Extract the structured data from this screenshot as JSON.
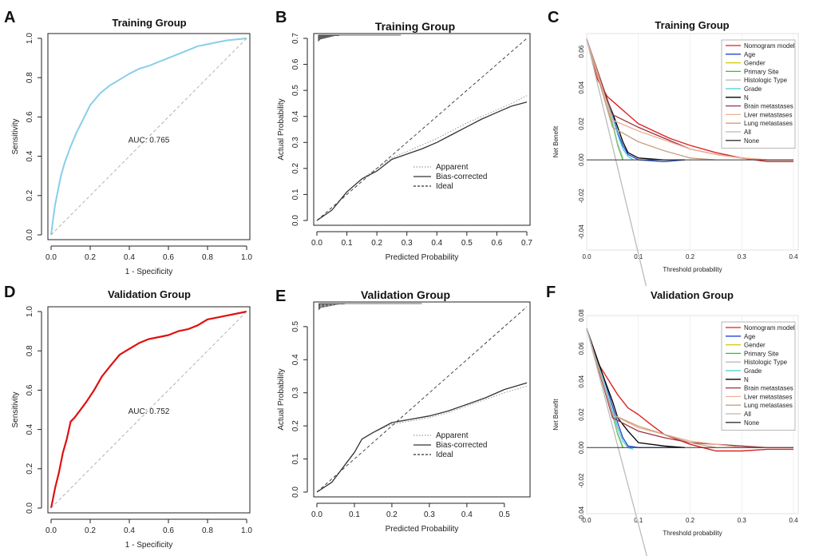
{
  "chart_data": [
    {
      "panel": "A",
      "type": "line",
      "title": "Training Group",
      "xlabel": "1 - Specificity",
      "ylabel": "Sensitivity",
      "xlim": [
        0,
        1
      ],
      "ylim": [
        0,
        1
      ],
      "xticks": [
        "0.0",
        "0.2",
        "0.4",
        "0.6",
        "0.8",
        "1.0"
      ],
      "yticks": [
        "0.0",
        "0.2",
        "0.4",
        "0.6",
        "0.8",
        "1.0"
      ],
      "annotation": "AUC: 0.765",
      "series": [
        {
          "name": "ROC",
          "color": "#87CEEB",
          "x": [
            0,
            0.01,
            0.02,
            0.03,
            0.05,
            0.07,
            0.1,
            0.13,
            0.16,
            0.2,
            0.25,
            0.3,
            0.35,
            0.4,
            0.45,
            0.5,
            0.55,
            0.6,
            0.65,
            0.7,
            0.75,
            0.8,
            0.85,
            0.9,
            0.95,
            1
          ],
          "y": [
            0,
            0.08,
            0.15,
            0.2,
            0.3,
            0.37,
            0.45,
            0.52,
            0.58,
            0.66,
            0.72,
            0.76,
            0.79,
            0.82,
            0.845,
            0.86,
            0.88,
            0.9,
            0.92,
            0.94,
            0.96,
            0.97,
            0.98,
            0.99,
            0.995,
            1
          ]
        },
        {
          "name": "Reference",
          "color": "#aaaaaa",
          "x": [
            0,
            1
          ],
          "y": [
            0,
            1
          ]
        }
      ]
    },
    {
      "panel": "B",
      "type": "line",
      "title": "Training Group",
      "xlabel": "Predicted Probability",
      "ylabel": "Actual Probability",
      "xlim": [
        0,
        0.7
      ],
      "ylim": [
        0,
        0.7
      ],
      "xticks": [
        "0.0",
        "0.1",
        "0.2",
        "0.3",
        "0.4",
        "0.5",
        "0.6",
        "0.7"
      ],
      "yticks": [
        "0.0",
        "0.1",
        "0.2",
        "0.3",
        "0.4",
        "0.5",
        "0.6",
        "0.7"
      ],
      "legend": [
        "Apparent",
        "Bias-corrected",
        "Ideal"
      ],
      "series": [
        {
          "name": "Apparent",
          "color": "#999999",
          "x": [
            0,
            0.05,
            0.1,
            0.15,
            0.2,
            0.25,
            0.3,
            0.35,
            0.4,
            0.45,
            0.5,
            0.55,
            0.6,
            0.65,
            0.7
          ],
          "y": [
            0,
            0.04,
            0.11,
            0.16,
            0.2,
            0.24,
            0.265,
            0.29,
            0.315,
            0.345,
            0.375,
            0.4,
            0.425,
            0.45,
            0.48
          ]
        },
        {
          "name": "Bias-corrected",
          "color": "#333333",
          "x": [
            0,
            0.05,
            0.1,
            0.15,
            0.2,
            0.25,
            0.3,
            0.35,
            0.4,
            0.45,
            0.5,
            0.55,
            0.6,
            0.65,
            0.7
          ],
          "y": [
            0,
            0.04,
            0.11,
            0.16,
            0.19,
            0.235,
            0.255,
            0.275,
            0.3,
            0.33,
            0.36,
            0.39,
            0.415,
            0.44,
            0.455
          ]
        },
        {
          "name": "Ideal",
          "color": "#333333",
          "x": [
            0,
            0.7
          ],
          "y": [
            0,
            0.7
          ]
        }
      ]
    },
    {
      "panel": "C",
      "type": "line",
      "title": "Training Group",
      "xlabel": "Threshold probability",
      "ylabel": "Net Benefit",
      "xlim": [
        0,
        0.4
      ],
      "ylim": [
        -0.05,
        0.07
      ],
      "xticks": [
        "0.0",
        "0.1",
        "0.2",
        "0.3",
        "0.4"
      ],
      "yticks": [
        "-0.04",
        "-0.02",
        "0.00",
        "0.02",
        "0.04",
        "0.06"
      ],
      "legend": [
        "Nomogram model",
        "Age",
        "Gender",
        "Primary Site",
        "Histologic Type",
        "Grade",
        "N",
        "Brain metastases",
        "Liver metastases",
        "Lung metastases",
        "All",
        "None"
      ],
      "series": [
        {
          "name": "Nomogram model",
          "color": "#dd2222",
          "x": [
            0,
            0.02,
            0.04,
            0.06,
            0.08,
            0.1,
            0.13,
            0.16,
            0.2,
            0.25,
            0.3,
            0.35,
            0.4
          ],
          "y": [
            0.067,
            0.045,
            0.035,
            0.03,
            0.025,
            0.02,
            0.016,
            0.012,
            0.008,
            0.004,
            0.001,
            -0.001,
            -0.001
          ]
        },
        {
          "name": "Age",
          "color": "#2244cc",
          "x": [
            0,
            0.03,
            0.05,
            0.06,
            0.07,
            0.08,
            0.1,
            0.15,
            0.19
          ],
          "y": [
            0.067,
            0.04,
            0.025,
            0.015,
            0.008,
            0.003,
            0.0,
            -0.001,
            0.0
          ]
        },
        {
          "name": "Gender",
          "color": "#cccc00",
          "x": [
            0,
            0.03,
            0.05,
            0.06,
            0.07
          ],
          "y": [
            0.067,
            0.038,
            0.02,
            0.008,
            0.0
          ]
        },
        {
          "name": "Primary Site",
          "color": "#22cc22",
          "x": [
            0,
            0.03,
            0.05,
            0.06,
            0.07
          ],
          "y": [
            0.067,
            0.038,
            0.02,
            0.008,
            0.0
          ]
        },
        {
          "name": "Histologic Type",
          "color": "#bbbbbb",
          "x": [
            0,
            0.03,
            0.05,
            0.06,
            0.07
          ],
          "y": [
            0.067,
            0.038,
            0.021,
            0.009,
            0.001
          ]
        },
        {
          "name": "Grade",
          "color": "#44ccdd",
          "x": [
            0,
            0.03,
            0.05,
            0.06,
            0.07,
            0.08,
            0.09
          ],
          "y": [
            0.067,
            0.04,
            0.024,
            0.014,
            0.006,
            0.002,
            0.0
          ]
        },
        {
          "name": "N",
          "color": "#000000",
          "x": [
            0,
            0.03,
            0.05,
            0.06,
            0.07,
            0.08,
            0.1,
            0.15,
            0.19
          ],
          "y": [
            0.067,
            0.04,
            0.026,
            0.018,
            0.01,
            0.004,
            0.001,
            0.0,
            0.0
          ]
        },
        {
          "name": "Brain metastases",
          "color": "#993344",
          "x": [
            0,
            0.05,
            0.1,
            0.15,
            0.2,
            0.25,
            0.3,
            0.35,
            0.4
          ],
          "y": [
            0.067,
            0.025,
            0.018,
            0.012,
            0.006,
            0.003,
            0.001,
            0.0,
            0.0
          ]
        },
        {
          "name": "Liver metastases",
          "color": "#f0b090",
          "x": [
            0,
            0.05,
            0.1,
            0.15,
            0.2,
            0.25,
            0.3,
            0.35,
            0.4
          ],
          "y": [
            0.067,
            0.022,
            0.016,
            0.011,
            0.006,
            0.003,
            0.001,
            0.0,
            0.0
          ]
        },
        {
          "name": "Lung metastases",
          "color": "#c8a080",
          "x": [
            0,
            0.05,
            0.1,
            0.15,
            0.2,
            0.25
          ],
          "y": [
            0.067,
            0.018,
            0.01,
            0.005,
            0.001,
            0.0
          ]
        },
        {
          "name": "All",
          "color": "#bbbbbb",
          "x": [
            0,
            0.115
          ],
          "y": [
            0.067,
            -0.07
          ]
        },
        {
          "name": "None",
          "color": "#333333",
          "x": [
            0,
            0.4
          ],
          "y": [
            0,
            0
          ]
        }
      ]
    },
    {
      "panel": "D",
      "type": "line",
      "title": "Validation Group",
      "xlabel": "1 - Specificity",
      "ylabel": "Sensitivity",
      "xlim": [
        0,
        1
      ],
      "ylim": [
        0,
        1
      ],
      "xticks": [
        "0.0",
        "0.2",
        "0.4",
        "0.6",
        "0.8",
        "1.0"
      ],
      "yticks": [
        "0.0",
        "0.2",
        "0.4",
        "0.6",
        "0.8",
        "1.0"
      ],
      "annotation": "AUC: 0.752",
      "series": [
        {
          "name": "ROC",
          "color": "#e01010",
          "x": [
            0,
            0.01,
            0.02,
            0.04,
            0.06,
            0.08,
            0.1,
            0.12,
            0.15,
            0.18,
            0.22,
            0.26,
            0.3,
            0.35,
            0.4,
            0.45,
            0.5,
            0.55,
            0.6,
            0.65,
            0.7,
            0.75,
            0.8,
            0.85,
            0.9,
            0.95,
            1
          ],
          "y": [
            0,
            0.05,
            0.1,
            0.18,
            0.28,
            0.35,
            0.44,
            0.46,
            0.5,
            0.54,
            0.6,
            0.67,
            0.72,
            0.78,
            0.81,
            0.84,
            0.86,
            0.87,
            0.88,
            0.9,
            0.91,
            0.93,
            0.96,
            0.97,
            0.98,
            0.99,
            1
          ]
        },
        {
          "name": "Reference",
          "color": "#aaaaaa",
          "x": [
            0,
            1
          ],
          "y": [
            0,
            1
          ]
        }
      ]
    },
    {
      "panel": "E",
      "type": "line",
      "title": "Validation Group",
      "xlabel": "Predicted Probability",
      "ylabel": "Actual Probability",
      "xlim": [
        0,
        0.56
      ],
      "ylim": [
        0,
        0.56
      ],
      "xticks": [
        "0.0",
        "0.1",
        "0.2",
        "0.3",
        "0.4",
        "0.5"
      ],
      "yticks": [
        "0.0",
        "0.1",
        "0.2",
        "0.3",
        "0.4",
        "0.5"
      ],
      "legend": [
        "Apparent",
        "Bias-corrected",
        "Ideal"
      ],
      "series": [
        {
          "name": "Apparent",
          "color": "#999999",
          "x": [
            0,
            0.04,
            0.08,
            0.1,
            0.12,
            0.15,
            0.2,
            0.25,
            0.3,
            0.35,
            0.4,
            0.45,
            0.5,
            0.56
          ],
          "y": [
            0,
            0.03,
            0.09,
            0.12,
            0.16,
            0.18,
            0.205,
            0.215,
            0.225,
            0.24,
            0.26,
            0.28,
            0.3,
            0.32
          ]
        },
        {
          "name": "Bias-corrected",
          "color": "#333333",
          "x": [
            0,
            0.04,
            0.08,
            0.1,
            0.12,
            0.15,
            0.2,
            0.25,
            0.3,
            0.35,
            0.4,
            0.45,
            0.5,
            0.56
          ],
          "y": [
            0,
            0.03,
            0.09,
            0.12,
            0.16,
            0.18,
            0.21,
            0.22,
            0.23,
            0.245,
            0.265,
            0.285,
            0.31,
            0.33
          ]
        },
        {
          "name": "Ideal",
          "color": "#333333",
          "x": [
            0,
            0.56
          ],
          "y": [
            0,
            0.56
          ]
        }
      ]
    },
    {
      "panel": "F",
      "type": "line",
      "title": "Validation Group",
      "xlabel": "Threshold probability",
      "ylabel": "Net Benefit",
      "xlim": [
        0,
        0.4
      ],
      "ylim": [
        -0.04,
        0.08
      ],
      "xticks": [
        "0.0",
        "0.1",
        "0.2",
        "0.3",
        "0.4"
      ],
      "yticks": [
        "-0.04",
        "-0.02",
        "0.00",
        "0.02",
        "0.04",
        "0.06",
        "0.08"
      ],
      "legend": [
        "Nomogram model",
        "Age",
        "Gender",
        "Primary Site",
        "Histologic Type",
        "Grade",
        "N",
        "Brain metastases",
        "Liver metastases",
        "Lung metastases",
        "All",
        "None"
      ],
      "series": [
        {
          "name": "Nomogram model",
          "color": "#dd2222",
          "x": [
            0,
            0.02,
            0.04,
            0.06,
            0.08,
            0.1,
            0.12,
            0.15,
            0.2,
            0.25,
            0.3,
            0.35,
            0.4
          ],
          "y": [
            0.072,
            0.052,
            0.042,
            0.032,
            0.024,
            0.02,
            0.015,
            0.008,
            0.002,
            -0.002,
            -0.002,
            -0.001,
            -0.001
          ]
        },
        {
          "name": "Age",
          "color": "#2244cc",
          "x": [
            0,
            0.03,
            0.05,
            0.06,
            0.07,
            0.08,
            0.1,
            0.15,
            0.19
          ],
          "y": [
            0.072,
            0.045,
            0.025,
            0.015,
            0.006,
            0.001,
            0.0,
            0.0,
            0.0
          ]
        },
        {
          "name": "Gender",
          "color": "#cccc00",
          "x": [
            0,
            0.03,
            0.05,
            0.06,
            0.07
          ],
          "y": [
            0.072,
            0.04,
            0.02,
            0.008,
            0.0
          ]
        },
        {
          "name": "Primary Site",
          "color": "#22cc22",
          "x": [
            0,
            0.03,
            0.05,
            0.06,
            0.07
          ],
          "y": [
            0.072,
            0.04,
            0.02,
            0.008,
            0.0
          ]
        },
        {
          "name": "Histologic Type",
          "color": "#bbbbbb",
          "x": [
            0,
            0.03,
            0.05,
            0.06,
            0.07
          ],
          "y": [
            0.072,
            0.04,
            0.021,
            0.009,
            0.001
          ]
        },
        {
          "name": "Grade",
          "color": "#44ccdd",
          "x": [
            0,
            0.03,
            0.05,
            0.06,
            0.07,
            0.08,
            0.09
          ],
          "y": [
            0.072,
            0.042,
            0.022,
            0.012,
            0.004,
            0.0,
            -0.001
          ]
        },
        {
          "name": "N",
          "color": "#000000",
          "x": [
            0,
            0.03,
            0.05,
            0.06,
            0.08,
            0.1,
            0.15,
            0.19
          ],
          "y": [
            0.072,
            0.045,
            0.028,
            0.018,
            0.01,
            0.003,
            0.001,
            0.0
          ]
        },
        {
          "name": "Brain metastases",
          "color": "#993344",
          "x": [
            0,
            0.05,
            0.1,
            0.15,
            0.2,
            0.25,
            0.3,
            0.35,
            0.4
          ],
          "y": [
            0.072,
            0.018,
            0.01,
            0.006,
            0.003,
            0.002,
            0.001,
            0.0,
            0.0
          ]
        },
        {
          "name": "Liver metastases",
          "color": "#f0b090",
          "x": [
            0,
            0.05,
            0.1,
            0.15,
            0.2,
            0.25,
            0.3,
            0.35,
            0.4
          ],
          "y": [
            0.072,
            0.02,
            0.012,
            0.008,
            0.004,
            0.002,
            0.0,
            0.0,
            0.0
          ]
        },
        {
          "name": "Lung metastases",
          "color": "#c8a080",
          "x": [
            0,
            0.05,
            0.1,
            0.15,
            0.2,
            0.25
          ],
          "y": [
            0.072,
            0.02,
            0.013,
            0.008,
            0.003,
            0.0
          ]
        },
        {
          "name": "All",
          "color": "#bbbbbb",
          "x": [
            0,
            0.12
          ],
          "y": [
            0.072,
            -0.07
          ]
        },
        {
          "name": "None",
          "color": "#333333",
          "x": [
            0,
            0.4
          ],
          "y": [
            0,
            0
          ]
        }
      ]
    }
  ]
}
